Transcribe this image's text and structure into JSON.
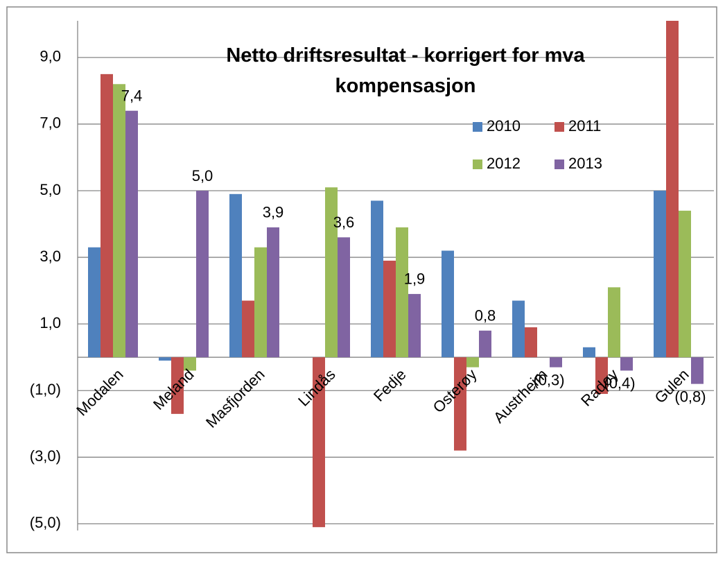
{
  "chart_data": {
    "type": "bar",
    "title": "Netto driftsresultat - korrigert for mva kompensasjon",
    "categories": [
      "Modalen",
      "Meland",
      "Masfjorden",
      "Lindås",
      "Fedje",
      "Osterøy",
      "Austrheim",
      "Radøy",
      "Gulen"
    ],
    "series": [
      {
        "name": "2010",
        "color": "#4f81bd",
        "values": [
          3.3,
          -0.1,
          4.9,
          0,
          4.7,
          3.2,
          1.7,
          0.3,
          5.0
        ]
      },
      {
        "name": "2011",
        "color": "#c0504d",
        "values": [
          8.5,
          -1.7,
          1.7,
          -5.1,
          2.9,
          -2.8,
          0.9,
          -1.1,
          10.1
        ]
      },
      {
        "name": "2012",
        "color": "#9bbb59",
        "values": [
          8.2,
          -0.4,
          3.3,
          5.1,
          3.9,
          -0.3,
          0,
          2.1,
          4.4
        ]
      },
      {
        "name": "2013",
        "color": "#8064a2",
        "values": [
          7.4,
          5.0,
          3.9,
          3.6,
          1.9,
          0.8,
          -0.3,
          -0.4,
          -0.8
        ],
        "value_labels": [
          "7,4",
          "5,0",
          "3,9",
          "3,6",
          "1,9",
          "0,8",
          "(0,3)",
          "(0,4)",
          "(0,8)"
        ]
      }
    ],
    "ylim": [
      -5.2,
      10.1
    ],
    "yticks": [
      {
        "value": -5,
        "label": "(5,0)"
      },
      {
        "value": -3,
        "label": "(3,0)"
      },
      {
        "value": -1,
        "label": "(1,0)"
      },
      {
        "value": 1,
        "label": "1,0"
      },
      {
        "value": 3,
        "label": "3,0"
      },
      {
        "value": 5,
        "label": "5,0"
      },
      {
        "value": 7,
        "label": "7,0"
      },
      {
        "value": 9,
        "label": "9,0"
      }
    ],
    "grid": true,
    "legend": "top-right"
  }
}
